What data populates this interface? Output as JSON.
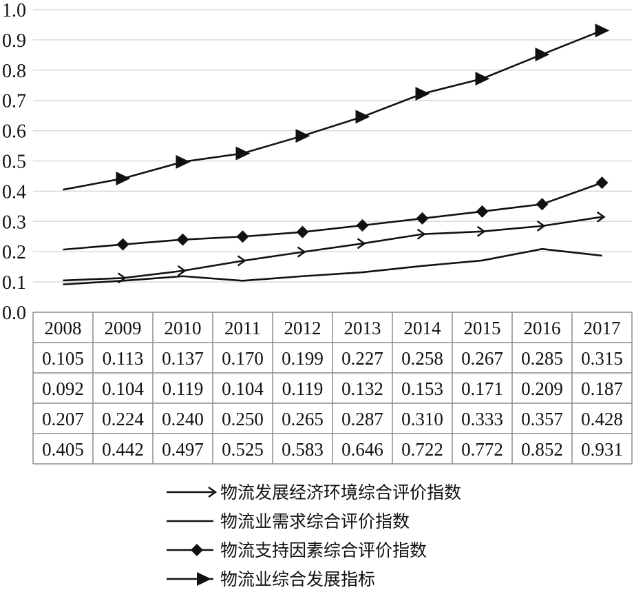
{
  "chart_data": {
    "type": "line",
    "categories": [
      "2008",
      "2009",
      "2010",
      "2011",
      "2012",
      "2013",
      "2014",
      "2015",
      "2016",
      "2017"
    ],
    "ylim": [
      0.0,
      1.0
    ],
    "yticks": [
      "0.0",
      "0.1",
      "0.2",
      "0.3",
      "0.4",
      "0.5",
      "0.6",
      "0.7",
      "0.8",
      "0.9",
      "1.0"
    ],
    "grid": "horizontal",
    "legend_position": "bottom",
    "series": [
      {
        "name": "物流发展经济环境综合评价指数",
        "marker": "arrow-small",
        "values": [
          0.105,
          0.113,
          0.137,
          0.17,
          0.199,
          0.227,
          0.258,
          0.267,
          0.285,
          0.315
        ],
        "labels": [
          "0.105",
          "0.113",
          "0.137",
          "0.170",
          "0.199",
          "0.227",
          "0.258",
          "0.267",
          "0.285",
          "0.315"
        ]
      },
      {
        "name": "物流业需求综合评价指数",
        "marker": "none",
        "values": [
          0.092,
          0.104,
          0.119,
          0.104,
          0.119,
          0.132,
          0.153,
          0.171,
          0.209,
          0.187
        ],
        "labels": [
          "0.092",
          "0.104",
          "0.119",
          "0.104",
          "0.119",
          "0.132",
          "0.153",
          "0.171",
          "0.209",
          "0.187"
        ]
      },
      {
        "name": "物流支持因素综合评价指数",
        "marker": "diamond",
        "values": [
          0.207,
          0.224,
          0.24,
          0.25,
          0.265,
          0.287,
          0.31,
          0.333,
          0.357,
          0.428
        ],
        "labels": [
          "0.207",
          "0.224",
          "0.240",
          "0.250",
          "0.265",
          "0.287",
          "0.310",
          "0.333",
          "0.357",
          "0.428"
        ]
      },
      {
        "name": "物流业综合发展指标",
        "marker": "triangle",
        "values": [
          0.405,
          0.442,
          0.497,
          0.525,
          0.583,
          0.646,
          0.722,
          0.772,
          0.852,
          0.931
        ],
        "labels": [
          "0.405",
          "0.442",
          "0.497",
          "0.525",
          "0.583",
          "0.646",
          "0.722",
          "0.772",
          "0.852",
          "0.931"
        ]
      }
    ]
  },
  "colors": {
    "line": "#111111",
    "grid": "#d9d9d9",
    "table_border": "#8c8c8c"
  }
}
